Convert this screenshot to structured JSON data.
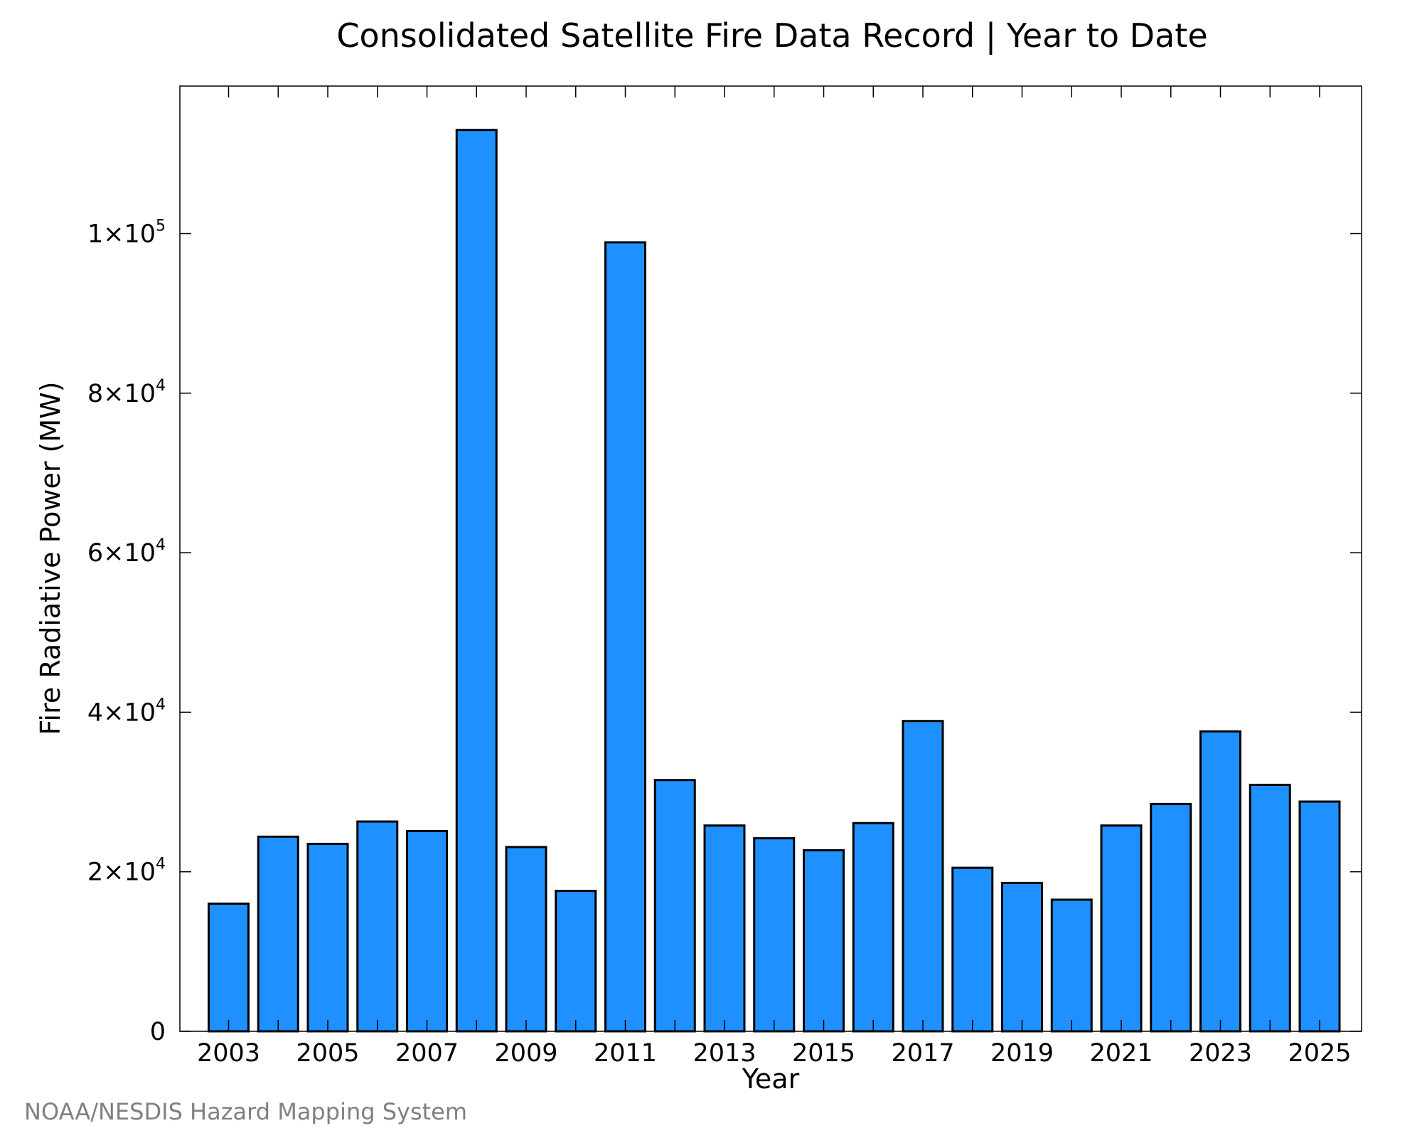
{
  "chart_data": {
    "type": "bar",
    "title": "Consolidated Satellite Fire Data Record | Year to Date",
    "xlabel": "Year",
    "ylabel": "Fire Radiative Power (MW)",
    "ylim": [
      0,
      118500
    ],
    "grid": false,
    "legend": "none",
    "bar_color": "#1e90ff",
    "bar_edge_color": "#000000",
    "categories": [
      "2003",
      "2004",
      "2005",
      "2006",
      "2007",
      "2008",
      "2009",
      "2010",
      "2011",
      "2012",
      "2013",
      "2014",
      "2015",
      "2016",
      "2017",
      "2018",
      "2019",
      "2020",
      "2021",
      "2022",
      "2023",
      "2024",
      "2025"
    ],
    "values": [
      16000,
      24400,
      23500,
      26300,
      25100,
      113000,
      23100,
      17600,
      98900,
      31500,
      25800,
      24200,
      22700,
      26100,
      38900,
      20500,
      18600,
      16500,
      25800,
      28500,
      37600,
      30900,
      28800
    ],
    "x_tick_labels": [
      "2003",
      "2005",
      "2007",
      "2009",
      "2011",
      "2013",
      "2015",
      "2017",
      "2019",
      "2021",
      "2023",
      "2025"
    ],
    "y_ticks": [
      {
        "value": 0,
        "mantissa": "0",
        "exponent": ""
      },
      {
        "value": 20000,
        "mantissa": "2×10",
        "exponent": "4"
      },
      {
        "value": 40000,
        "mantissa": "4×10",
        "exponent": "4"
      },
      {
        "value": 60000,
        "mantissa": "6×10",
        "exponent": "4"
      },
      {
        "value": 80000,
        "mantissa": "8×10",
        "exponent": "4"
      },
      {
        "value": 100000,
        "mantissa": "1×10",
        "exponent": "5"
      }
    ]
  },
  "credit": "NOAA/NESDIS Hazard Mapping System"
}
